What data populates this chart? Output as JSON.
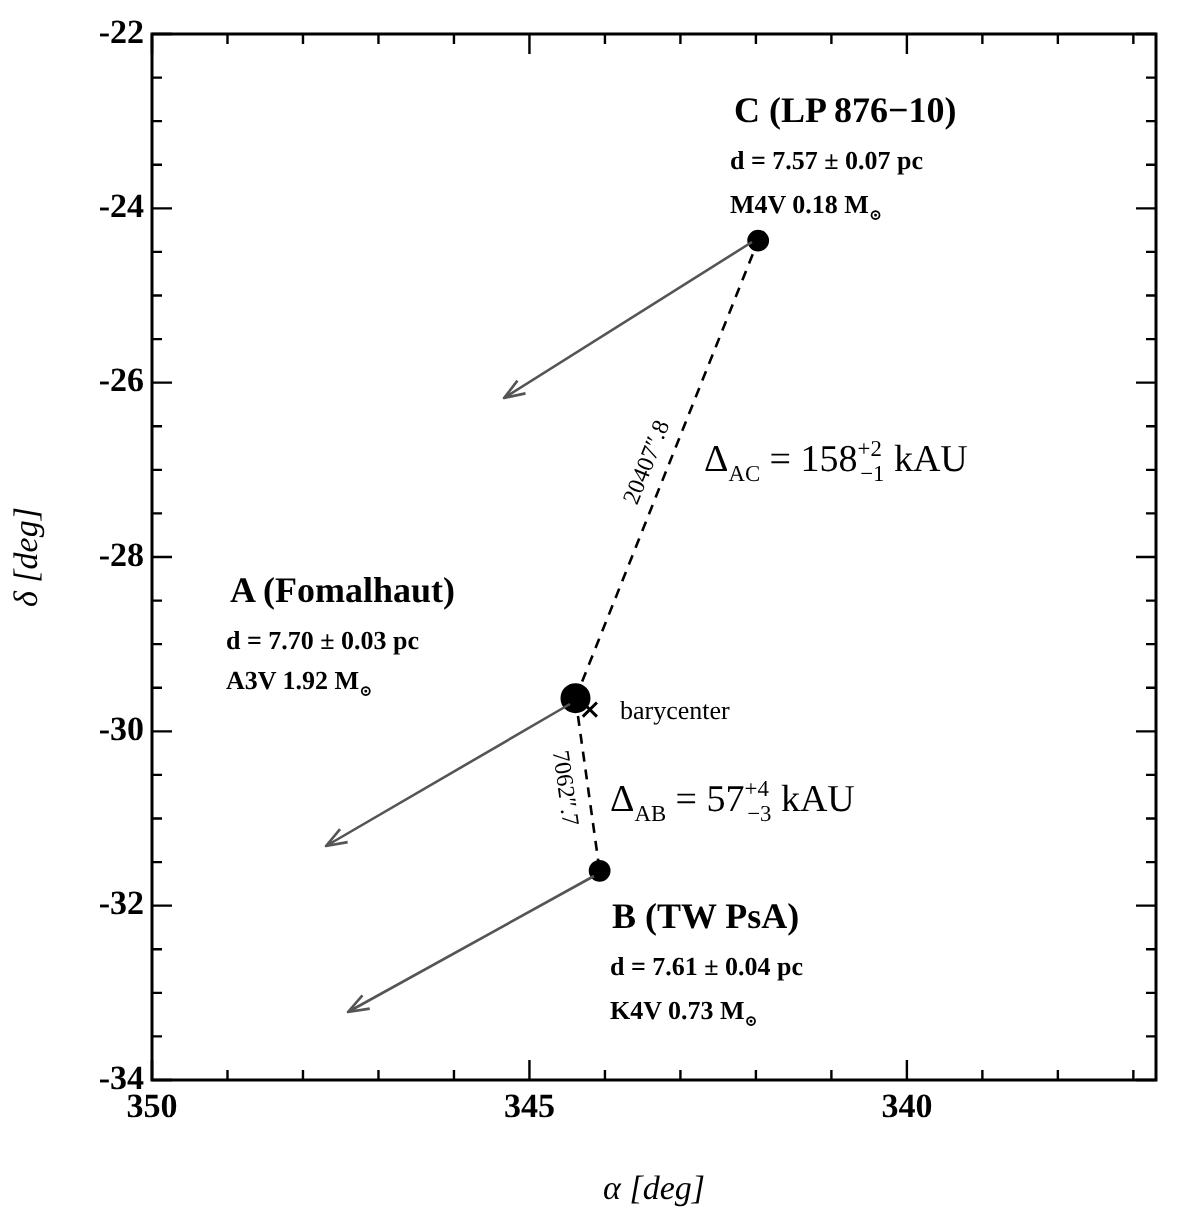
{
  "chart_data": {
    "type": "scatter",
    "xlabel": "α [deg]",
    "ylabel": "δ [deg]",
    "xlim": [
      350,
      336.7
    ],
    "xticks": [
      350,
      {
        "value": 349,
        "label": null
      },
      {
        "value": 348,
        "label": null
      },
      {
        "value": 347,
        "label": null
      },
      {
        "value": 346,
        "label": null
      },
      345,
      {
        "value": 344,
        "label": null
      },
      {
        "value": 343,
        "label": null
      },
      {
        "value": 342,
        "label": null
      },
      {
        "value": 341,
        "label": null
      },
      340,
      {
        "value": 339,
        "label": null
      },
      {
        "value": 338,
        "label": null
      },
      {
        "value": 337,
        "label": null
      }
    ],
    "ylim": [
      -34,
      -22
    ],
    "yticks": [
      -34,
      {
        "value": -33.5,
        "label": null
      },
      {
        "value": -33,
        "label": null
      },
      {
        "value": -32.5,
        "label": null
      },
      -32,
      {
        "value": -31.5,
        "label": null
      },
      {
        "value": -31,
        "label": null
      },
      {
        "value": -30.5,
        "label": null
      },
      -30,
      {
        "value": -29.5,
        "label": null
      },
      {
        "value": -29,
        "label": null
      },
      {
        "value": -28.5,
        "label": null
      },
      -28,
      {
        "value": -27.5,
        "label": null
      },
      {
        "value": -27,
        "label": null
      },
      {
        "value": -26.5,
        "label": null
      },
      -26,
      {
        "value": -25.5,
        "label": null
      },
      {
        "value": -25,
        "label": null
      },
      {
        "value": -24.5,
        "label": null
      },
      -24,
      {
        "value": -23.5,
        "label": null
      },
      {
        "value": -23,
        "label": null
      },
      {
        "value": -22.5,
        "label": null
      },
      -22
    ],
    "grid": false,
    "legend": false,
    "series": [
      {
        "type": "line",
        "name": "20407″.8",
        "color": "#000000",
        "line_style": "dashed",
        "x": [
          344.39,
          341.97
        ],
        "values": [
          -29.62,
          -24.37
        ]
      },
      {
        "type": "line",
        "name": "7062″.7",
        "color": "#000000",
        "line_style": "dashed",
        "x": [
          344.39,
          344.07
        ],
        "values": [
          -29.62,
          -31.6
        ]
      },
      {
        "type": "bubble",
        "color": "#000000",
        "x": [
          344.39,
          344.07,
          341.97
        ],
        "values": [
          -29.62,
          -31.6,
          -24.37
        ],
        "sizes": [
          1,
          0.5,
          0.5
        ]
      },
      {
        "type": "scatter",
        "marker": "cross",
        "color": "#000000",
        "x": [
          344.2
        ],
        "values": [
          -29.75
        ]
      }
    ],
    "annotations": [
      "C (LP 876−10)",
      "d = 7.57 ± 0.07 pc",
      "M4V  0.18 M$_{⊙}$",
      "Δ$_{AC}$ = 158$^{+2}$$_{−1}$ kAU",
      "A (Fomalhaut)",
      "d = 7.70 ± 0.03 pc",
      "A3V  1.92 M$_{⊙}$",
      "barycenter",
      "Δ$_{AB}$ = 57$^{+4}$$_{−3}$ kAU",
      "B (TW PsA)",
      "d = 7.61 ± 0.04 pc",
      "K4V  0.73 M$_{⊙}$"
    ]
  }
}
